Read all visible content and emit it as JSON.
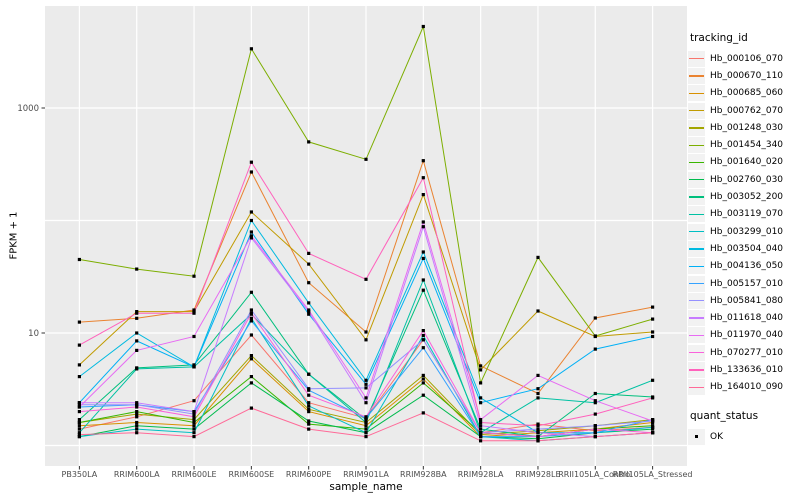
{
  "y_axis": {
    "title": "FPKM + 1",
    "tick_labels": [
      "1000",
      "10"
    ],
    "tick_values": [
      1000,
      10
    ],
    "gridline_values": [
      1,
      10,
      100,
      1000
    ]
  },
  "x_axis": {
    "title": "sample_name",
    "categories": [
      "PB350LA",
      "RRIM600LA",
      "RRIM600LE",
      "RRIM600SE",
      "RRIM600PE",
      "RRIM901LA",
      "RRIM928BA",
      "RRIM928LA",
      "RRIM928LE",
      "RRII105LA_Control",
      "RRII105LA_Stressed"
    ]
  },
  "legend": {
    "tracking_title": "tracking_id",
    "quant_title": "quant_status",
    "quant_label": "OK"
  },
  "style": {
    "panel_fill": "#EBEBEB",
    "grid_color": "#FFFFFF",
    "tick_color": "#333333",
    "axis_text_color": "#4D4D4D",
    "point_color": "#000000"
  },
  "chart_data": {
    "type": "line",
    "title": "",
    "xlabel": "sample_name",
    "ylabel": "FPKM + 1",
    "yscale": "log10",
    "ylim": [
      0.67,
      8000
    ],
    "grid": true,
    "legend_position": "right",
    "point_shape": "filled-square",
    "quant_status_all_points": "OK",
    "categories": [
      "PB350LA",
      "RRIM600LA",
      "RRIM600LE",
      "RRIM600SE",
      "RRIM600PE",
      "RRIM901LA",
      "RRIM928BA",
      "RRIM928LA",
      "RRIM928LE",
      "RRII105LA_Control",
      "RRII105LA_Stressed"
    ],
    "series": [
      {
        "name": "Hb_000106_070",
        "color": "#F8766D",
        "values": [
          1.4,
          1.8,
          2.5,
          9.6,
          2.4,
          1.75,
          8.7,
          1.3,
          1.55,
          1.35,
          1.45
        ]
      },
      {
        "name": "Hb_000670_110",
        "color": "#EA8331",
        "values": [
          12.5,
          13.5,
          16,
          270,
          28,
          10.2,
          340,
          5.1,
          2.9,
          13.6,
          17
        ]
      },
      {
        "name": "Hb_000685_060",
        "color": "#D89000",
        "values": [
          1.5,
          1.6,
          1.5,
          5.9,
          2.0,
          1.5,
          3.9,
          1.2,
          1.3,
          1.4,
          1.6
        ]
      },
      {
        "name": "Hb_000762_070",
        "color": "#C09B00",
        "values": [
          5.2,
          15.5,
          15.5,
          119,
          41,
          8.7,
          170,
          4.7,
          15.7,
          9.3,
          10.2
        ]
      },
      {
        "name": "Hb_001248_030",
        "color": "#A3A500",
        "values": [
          1.6,
          1.9,
          1.7,
          6.3,
          2.1,
          1.6,
          4.2,
          1.25,
          1.35,
          1.5,
          1.7
        ]
      },
      {
        "name": "Hb_001454_340",
        "color": "#7CAE00",
        "values": [
          45,
          37,
          32,
          3360,
          500,
          350,
          5300,
          3.6,
          47,
          9.4,
          13.3
        ]
      },
      {
        "name": "Hb_001640_020",
        "color": "#39B600",
        "values": [
          1.6,
          2.0,
          1.6,
          4.1,
          1.55,
          1.4,
          3.6,
          1.3,
          1.2,
          1.4,
          1.5
        ]
      },
      {
        "name": "Hb_002760_030",
        "color": "#00BB4E",
        "values": [
          1.2,
          1.5,
          1.4,
          3.6,
          1.65,
          1.3,
          2.8,
          1.2,
          1.15,
          1.3,
          1.4
        ]
      },
      {
        "name": "Hb_003052_200",
        "color": "#00BF7D",
        "values": [
          1.7,
          4.9,
          5.2,
          23,
          4.3,
          1.7,
          24,
          1.4,
          1.2,
          2.9,
          2.7
        ]
      },
      {
        "name": "Hb_003119_070",
        "color": "#00C1A3",
        "values": [
          1.3,
          4.8,
          5.0,
          14.7,
          4.3,
          1.6,
          29.6,
          1.3,
          2.65,
          2.4,
          3.8
        ]
      },
      {
        "name": "Hb_003299_010",
        "color": "#00BFC4",
        "values": [
          1.2,
          1.4,
          1.3,
          13.5,
          2.25,
          1.3,
          9.5,
          1.2,
          1.1,
          1.2,
          1.3
        ]
      },
      {
        "name": "Hb_003504_040",
        "color": "#00BAE0",
        "values": [
          4.1,
          10,
          5.0,
          100,
          18.5,
          3.8,
          52.5,
          2.65,
          1.3,
          1.3,
          1.45
        ]
      },
      {
        "name": "Hb_004136_050",
        "color": "#00B0F6",
        "values": [
          2.4,
          8.5,
          5.0,
          79,
          14.7,
          3.5,
          46,
          2.4,
          3.2,
          7.2,
          9.3
        ]
      },
      {
        "name": "Hb_005157_010",
        "color": "#35A2FF",
        "values": [
          2.2,
          2.3,
          2.0,
          12.8,
          3.1,
          1.75,
          7.4,
          1.2,
          1.2,
          1.3,
          1.7
        ]
      },
      {
        "name": "Hb_005841_080",
        "color": "#9590FF",
        "values": [
          2.3,
          2.3,
          1.9,
          16,
          3.2,
          3.25,
          8.7,
          1.3,
          1.4,
          1.5,
          1.65
        ]
      },
      {
        "name": "Hb_011618_040",
        "color": "#C77CFF",
        "values": [
          2.4,
          2.4,
          2.0,
          70,
          15.5,
          2.4,
          88,
          1.5,
          1.3,
          1.2,
          1.3
        ]
      },
      {
        "name": "Hb_011970_040",
        "color": "#E76BF3",
        "values": [
          2.2,
          7.0,
          9.3,
          73,
          16,
          2.65,
          97,
          1.7,
          4.2,
          2.5,
          1.65
        ]
      },
      {
        "name": "Hb_070277_010",
        "color": "#FA62DB",
        "values": [
          2.0,
          2.2,
          1.8,
          15,
          2.8,
          1.8,
          10.5,
          1.3,
          1.2,
          1.4,
          1.3
        ]
      },
      {
        "name": "Hb_133636_010",
        "color": "#FF62BC",
        "values": [
          7.8,
          15,
          15,
          330,
          51,
          30,
          240,
          1.6,
          1.5,
          1.9,
          2.65
        ]
      },
      {
        "name": "Hb_164010_090",
        "color": "#FF6A98",
        "values": [
          1.25,
          1.3,
          1.2,
          2.15,
          1.4,
          1.2,
          1.95,
          1.1,
          1.1,
          1.2,
          1.3
        ]
      }
    ]
  }
}
